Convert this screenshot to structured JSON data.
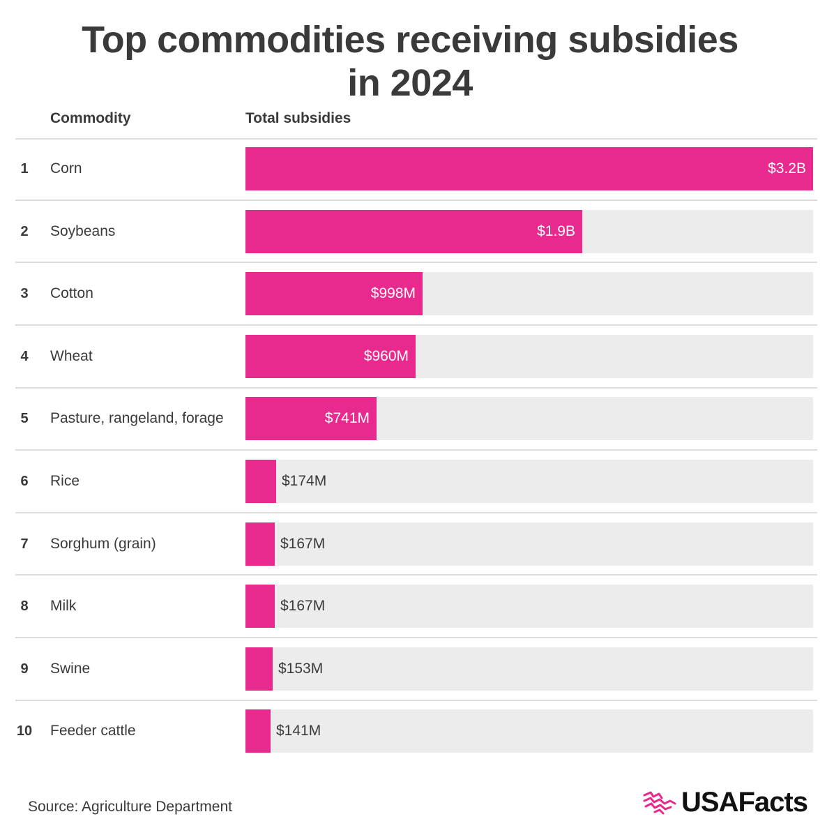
{
  "title_line1": "Top commodities receiving subsidies",
  "title_line2": "in 2024",
  "headers": {
    "commodity": "Commodity",
    "total": "Total subsidies"
  },
  "source": "Source: Agriculture Department",
  "logo": {
    "text": "USAFacts",
    "icon": "usa-map-logo-icon"
  },
  "colors": {
    "bar": "#e8298e",
    "track": "#ececec",
    "text": "#3a3a3a"
  },
  "chart_data": {
    "type": "bar",
    "orientation": "horizontal",
    "max_value": 3.2,
    "unit": "billions USD",
    "categories": [
      "Corn",
      "Soybeans",
      "Cotton",
      "Wheat",
      "Pasture, rangeland, forage",
      "Rice",
      "Sorghum (grain)",
      "Milk",
      "Swine",
      "Feeder cattle"
    ],
    "values": [
      3.2,
      1.9,
      0.998,
      0.96,
      0.741,
      0.174,
      0.167,
      0.167,
      0.153,
      0.141
    ],
    "ranks": [
      "1",
      "2",
      "3",
      "4",
      "5",
      "6",
      "7",
      "8",
      "9",
      "10"
    ],
    "labels": [
      "$3.2B",
      "$1.9B",
      "$998M",
      "$960M",
      "$741M",
      "$174M",
      "$167M",
      "$167M",
      "$153M",
      "$141M"
    ]
  }
}
